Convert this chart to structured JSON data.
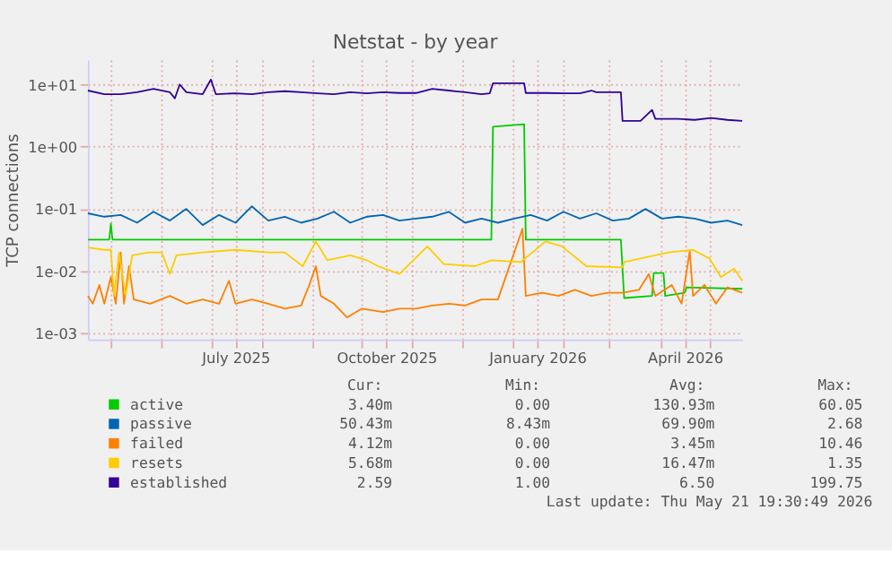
{
  "chart_data": {
    "type": "line",
    "title": "Netstat - by year",
    "ylabel": "TCP connections",
    "log": true,
    "grid": true,
    "legend": "bottom",
    "xlim": [
      "2025-04-17",
      "2026-05-21"
    ],
    "xticks": [
      {
        "value": "2025-05-01",
        "label": null
      },
      {
        "value": "2025-06-01",
        "label": null
      },
      {
        "value": "2025-07-01",
        "label": null
      },
      {
        "value": "2025-07-16",
        "label": "July 2025"
      },
      {
        "value": "2025-08-01",
        "label": null
      },
      {
        "value": "2025-09-01",
        "label": null
      },
      {
        "value": "2025-10-01",
        "label": null
      },
      {
        "value": "2025-10-16",
        "label": "October 2025"
      },
      {
        "value": "2025-11-01",
        "label": null
      },
      {
        "value": "2025-12-01",
        "label": null
      },
      {
        "value": "2026-01-01",
        "label": null
      },
      {
        "value": "2026-01-16",
        "label": "January 2026"
      },
      {
        "value": "2026-02-01",
        "label": null
      },
      {
        "value": "2026-03-01",
        "label": null
      },
      {
        "value": "2026-04-01",
        "label": null
      },
      {
        "value": "2026-04-16",
        "label": "April 2026"
      },
      {
        "value": "2026-05-01",
        "label": null
      }
    ],
    "ylim": [
      0.0008,
      25
    ],
    "yticks": [
      {
        "value": 0.001,
        "label": "1e-03"
      },
      {
        "value": 0.01,
        "label": "1e-02"
      },
      {
        "value": 0.1,
        "label": "1e-01"
      },
      {
        "value": 1,
        "label": "1e+00"
      },
      {
        "value": 10,
        "label": "1e+01"
      }
    ],
    "x": [
      "2025-04-17",
      "2025-04-27",
      "2025-05-07",
      "2025-05-17",
      "2025-05-27",
      "2025-06-06",
      "2025-06-16",
      "2025-06-26",
      "2025-07-06",
      "2025-07-16",
      "2025-07-26",
      "2025-08-05",
      "2025-08-15",
      "2025-08-25",
      "2025-09-04",
      "2025-09-14",
      "2025-09-24",
      "2025-10-04",
      "2025-10-14",
      "2025-10-24",
      "2025-11-03",
      "2025-11-13",
      "2025-11-23",
      "2025-12-03",
      "2025-12-13",
      "2025-12-23",
      "2026-01-02",
      "2026-01-12",
      "2026-01-22",
      "2026-02-01",
      "2026-02-11",
      "2026-02-21",
      "2026-03-03",
      "2026-03-13",
      "2026-03-23",
      "2026-04-02",
      "2026-04-12",
      "2026-04-22",
      "2026-05-02",
      "2026-05-12",
      "2026-05-21"
    ],
    "series": [
      {
        "name": "active",
        "color": "#00cc00",
        "x": [
          "2025-04-17",
          "2025-04-30",
          "2025-05-01",
          "2025-05-02",
          "2025-12-19",
          "2025-12-20",
          "2026-01-08",
          "2026-01-09",
          "2026-03-08",
          "2026-03-10",
          "2026-03-27",
          "2026-03-28",
          "2026-04-03",
          "2026-04-04",
          "2026-04-16",
          "2026-04-17",
          "2026-05-21"
        ],
        "values": [
          0.032,
          0.032,
          0.058,
          0.032,
          0.032,
          2.1,
          2.3,
          0.032,
          0.032,
          0.0037,
          0.004,
          0.0093,
          0.0093,
          0.004,
          0.0045,
          0.0055,
          0.0052
        ]
      },
      {
        "name": "passive",
        "color": "#0066b3",
        "values": [
          0.085,
          0.075,
          0.08,
          0.06,
          0.09,
          0.065,
          0.1,
          0.055,
          0.08,
          0.06,
          0.11,
          0.065,
          0.075,
          0.06,
          0.07,
          0.09,
          0.06,
          0.075,
          0.08,
          0.065,
          0.07,
          0.075,
          0.09,
          0.06,
          0.07,
          0.06,
          0.07,
          0.08,
          0.065,
          0.09,
          0.07,
          0.085,
          0.065,
          0.07,
          0.1,
          0.07,
          0.075,
          0.07,
          0.06,
          0.065,
          0.055
        ]
      },
      {
        "name": "failed",
        "color": "#ff8000",
        "x": [
          "2025-04-17",
          "2025-04-20",
          "2025-04-24",
          "2025-04-27",
          "2025-05-01",
          "2025-05-04",
          "2025-05-07",
          "2025-05-09",
          "2025-05-12",
          "2025-05-15",
          "2025-05-25",
          "2025-06-06",
          "2025-06-16",
          "2025-06-26",
          "2025-07-06",
          "2025-07-12",
          "2025-07-16",
          "2025-07-26",
          "2025-08-05",
          "2025-08-15",
          "2025-08-25",
          "2025-08-30",
          "2025-09-03",
          "2025-09-06",
          "2025-09-14",
          "2025-09-22",
          "2025-10-01",
          "2025-10-14",
          "2025-10-24",
          "2025-11-03",
          "2025-11-13",
          "2025-11-23",
          "2025-12-03",
          "2025-12-13",
          "2025-12-23",
          "2026-01-07",
          "2026-01-09",
          "2026-01-19",
          "2026-01-29",
          "2026-02-08",
          "2026-02-18",
          "2026-02-28",
          "2026-03-09",
          "2026-03-19",
          "2026-03-25",
          "2026-03-29",
          "2026-04-08",
          "2026-04-14",
          "2026-04-19",
          "2026-04-21",
          "2026-04-28",
          "2026-05-05",
          "2026-05-12",
          "2026-05-21"
        ],
        "values": [
          0.004,
          0.003,
          0.006,
          0.003,
          0.008,
          0.003,
          0.02,
          0.003,
          0.012,
          0.0035,
          0.003,
          0.004,
          0.003,
          0.0035,
          0.003,
          0.007,
          0.003,
          0.0035,
          0.003,
          0.0025,
          0.0028,
          0.006,
          0.012,
          0.004,
          0.003,
          0.0018,
          0.0025,
          0.0022,
          0.0025,
          0.0025,
          0.0028,
          0.003,
          0.0028,
          0.0035,
          0.0035,
          0.048,
          0.004,
          0.0045,
          0.004,
          0.005,
          0.004,
          0.0045,
          0.0045,
          0.005,
          0.009,
          0.004,
          0.006,
          0.003,
          0.021,
          0.004,
          0.006,
          0.003,
          0.0055,
          0.0045
        ]
      },
      {
        "name": "resets",
        "color": "#ffcc00",
        "x": [
          "2025-04-17",
          "2025-04-27",
          "2025-05-01",
          "2025-05-03",
          "2025-05-06",
          "2025-05-10",
          "2025-05-14",
          "2025-05-24",
          "2025-06-01",
          "2025-06-06",
          "2025-06-10",
          "2025-06-26",
          "2025-07-16",
          "2025-08-05",
          "2025-08-15",
          "2025-08-26",
          "2025-09-03",
          "2025-09-10",
          "2025-09-24",
          "2025-10-04",
          "2025-10-11",
          "2025-10-24",
          "2025-11-10",
          "2025-11-20",
          "2025-12-09",
          "2025-12-19",
          "2026-01-06",
          "2026-01-21",
          "2026-01-31",
          "2026-02-15",
          "2026-03-09",
          "2026-03-10",
          "2026-04-06",
          "2026-04-21",
          "2026-05-01",
          "2026-05-08",
          "2026-05-16",
          "2026-05-21"
        ],
        "values": [
          0.024,
          0.022,
          0.022,
          0.004,
          0.02,
          0.004,
          0.018,
          0.02,
          0.02,
          0.009,
          0.018,
          0.02,
          0.022,
          0.02,
          0.02,
          0.012,
          0.03,
          0.015,
          0.018,
          0.015,
          0.012,
          0.009,
          0.025,
          0.013,
          0.012,
          0.015,
          0.014,
          0.03,
          0.025,
          0.012,
          0.0115,
          0.014,
          0.02,
          0.022,
          0.016,
          0.008,
          0.011,
          0.007
        ]
      },
      {
        "name": "established",
        "color": "#330099",
        "x": [
          "2025-04-17",
          "2025-04-27",
          "2025-05-07",
          "2025-05-17",
          "2025-05-27",
          "2025-06-06",
          "2025-06-09",
          "2025-06-12",
          "2025-06-16",
          "2025-06-26",
          "2025-07-01",
          "2025-07-04",
          "2025-07-16",
          "2025-07-26",
          "2025-08-05",
          "2025-08-15",
          "2025-08-25",
          "2025-09-04",
          "2025-09-14",
          "2025-09-24",
          "2025-10-04",
          "2025-10-14",
          "2025-10-24",
          "2025-11-03",
          "2025-11-13",
          "2025-11-23",
          "2025-12-03",
          "2025-12-13",
          "2025-12-18",
          "2025-12-20",
          "2026-01-08",
          "2026-01-09",
          "2026-01-22",
          "2026-02-01",
          "2026-02-11",
          "2026-02-18",
          "2026-02-21",
          "2026-03-03",
          "2026-03-08",
          "2026-03-09",
          "2026-03-20",
          "2026-03-27",
          "2026-03-29",
          "2026-04-12",
          "2026-04-22",
          "2026-05-02",
          "2026-05-12",
          "2026-05-21"
        ],
        "values": [
          8.0,
          7.0,
          7.0,
          7.5,
          8.5,
          7.5,
          6.0,
          10.0,
          7.5,
          7.0,
          12.0,
          7.0,
          7.2,
          7.0,
          7.5,
          7.8,
          7.5,
          7.2,
          7.0,
          7.5,
          7.2,
          7.5,
          7.3,
          7.3,
          8.5,
          8.0,
          7.5,
          7.0,
          7.2,
          10.5,
          10.5,
          7.3,
          7.3,
          7.2,
          7.2,
          8.0,
          7.5,
          7.5,
          7.5,
          2.6,
          2.6,
          3.9,
          2.8,
          2.8,
          2.7,
          2.9,
          2.7,
          2.6
        ]
      }
    ],
    "annotations": [
      "Cur:",
      "Min:",
      "Avg:",
      "Max:",
      "3.40m",
      "0.00",
      "130.93m",
      "60.05",
      "50.43m",
      "8.43m",
      "69.90m",
      "2.68",
      "4.12m",
      "0.00",
      "3.45m",
      "10.46",
      "5.68m",
      "0.00",
      "16.47m",
      "1.35",
      "2.59",
      "1.00",
      "6.50",
      "199.75",
      "Last update: Thu May 21 19:30:49 2026"
    ]
  }
}
